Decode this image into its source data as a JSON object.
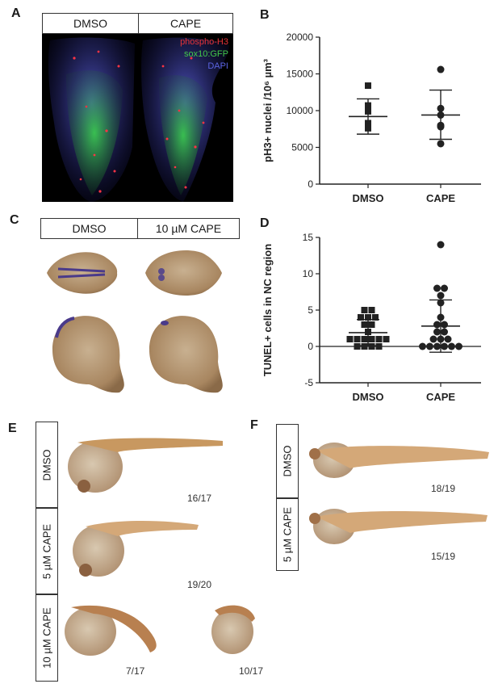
{
  "panels": {
    "A": {
      "label": "A",
      "headers": [
        "DMSO",
        "CAPE"
      ],
      "legend": [
        {
          "text": "phospho-H3",
          "color": "#e8343a"
        },
        {
          "text": "sox10:GFP",
          "color": "#43c84a"
        },
        {
          "text": "DAPI",
          "color": "#5a63e0"
        }
      ]
    },
    "B": {
      "label": "B"
    },
    "C": {
      "label": "C",
      "headers": [
        "DMSO",
        "10 µM CAPE"
      ]
    },
    "D": {
      "label": "D"
    },
    "E": {
      "label": "E",
      "rows": [
        "DMSO",
        "5 µM CAPE",
        "10 µM CAPE"
      ],
      "counts": [
        "16/17",
        "19/20",
        "7/17",
        "10/17"
      ]
    },
    "F": {
      "label": "F",
      "rows": [
        "DMSO",
        "5 µM CAPE"
      ],
      "counts": [
        "18/19",
        "15/19"
      ]
    }
  },
  "chart_data": [
    {
      "type": "scatter",
      "panel": "B",
      "ylabel": "pH3+ nuclei /10⁶ µm³",
      "ylim": [
        0,
        20000
      ],
      "yticks": [
        0,
        5000,
        10000,
        15000,
        20000
      ],
      "categories": [
        "DMSO",
        "CAPE"
      ],
      "series": [
        {
          "category": "DMSO",
          "marker": "square",
          "values": [
            13400,
            10700,
            9900,
            8300,
            7900,
            7600
          ],
          "mean": 9200,
          "sd_low": 6800,
          "sd_high": 11600
        },
        {
          "category": "CAPE",
          "marker": "circle",
          "values": [
            15600,
            10300,
            9400,
            8000,
            7800,
            5500
          ],
          "mean": 9400,
          "sd_low": 6100,
          "sd_high": 12800
        }
      ]
    },
    {
      "type": "scatter",
      "panel": "D",
      "ylabel": "TUNEL+ cells in NC region",
      "ylim": [
        -5,
        15
      ],
      "yticks": [
        -5,
        0,
        5,
        10,
        15
      ],
      "categories": [
        "DMSO",
        "CAPE"
      ],
      "series": [
        {
          "category": "DMSO",
          "marker": "square",
          "values": [
            5,
            5,
            4,
            4,
            4,
            3,
            3,
            2,
            1,
            1,
            1,
            1,
            1,
            1,
            0,
            0,
            0,
            0
          ],
          "mean": 1.9,
          "sd_low": 0.1,
          "sd_high": 3.7
        },
        {
          "category": "CAPE",
          "marker": "circle",
          "values": [
            14,
            8,
            8,
            7,
            6,
            4,
            3,
            3,
            2,
            2,
            1,
            1,
            1,
            0,
            0,
            0,
            0,
            0,
            0
          ],
          "mean": 2.8,
          "sd_low": -0.8,
          "sd_high": 6.4
        }
      ]
    }
  ]
}
